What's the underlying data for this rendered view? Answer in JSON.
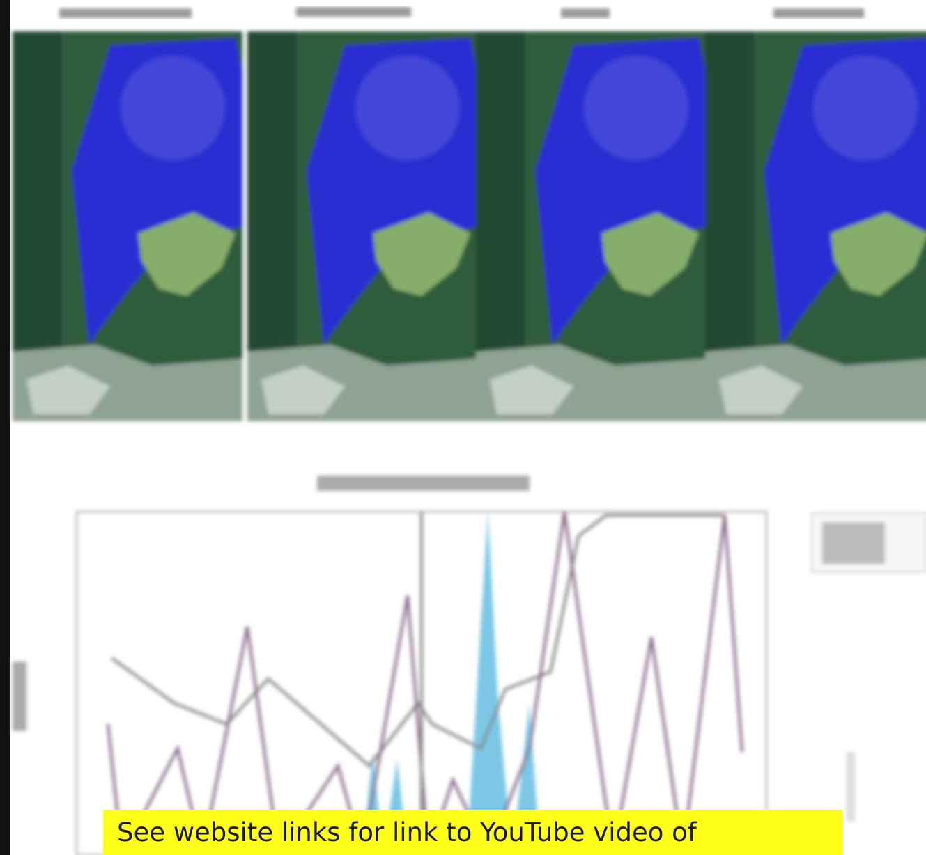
{
  "caption": {
    "text": "See website links for link to YouTube video of"
  }
}
